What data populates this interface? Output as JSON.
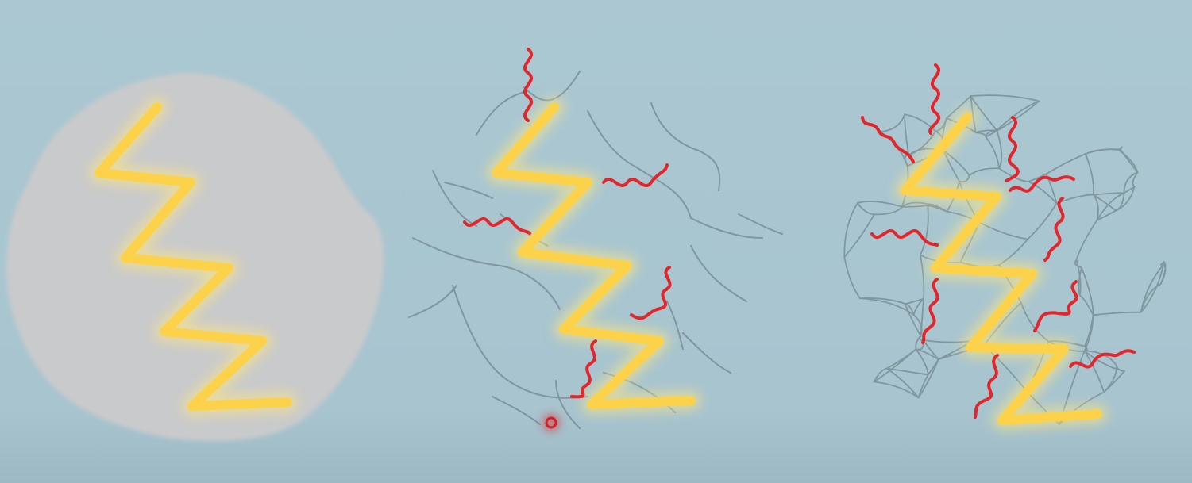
{
  "diagram": {
    "panels": [
      {
        "id": "solid",
        "name": "uncracked-block"
      },
      {
        "id": "partly",
        "name": "partially-cracked-block"
      },
      {
        "id": "fully",
        "name": "fully-cracked-block"
      }
    ],
    "colors": {
      "background": "#abc8d2",
      "solid_fill": "#c9cacb",
      "crack": "#7a8f98",
      "filament_glow": "#ffe680",
      "filament_core": "#fcd24a",
      "wave": "#e2262b",
      "marker": "#d61f26"
    },
    "icons": {
      "filament": "zigzag-filament-icon",
      "wave": "heat-wave-icon",
      "marker": "cursor-dot-icon"
    }
  }
}
